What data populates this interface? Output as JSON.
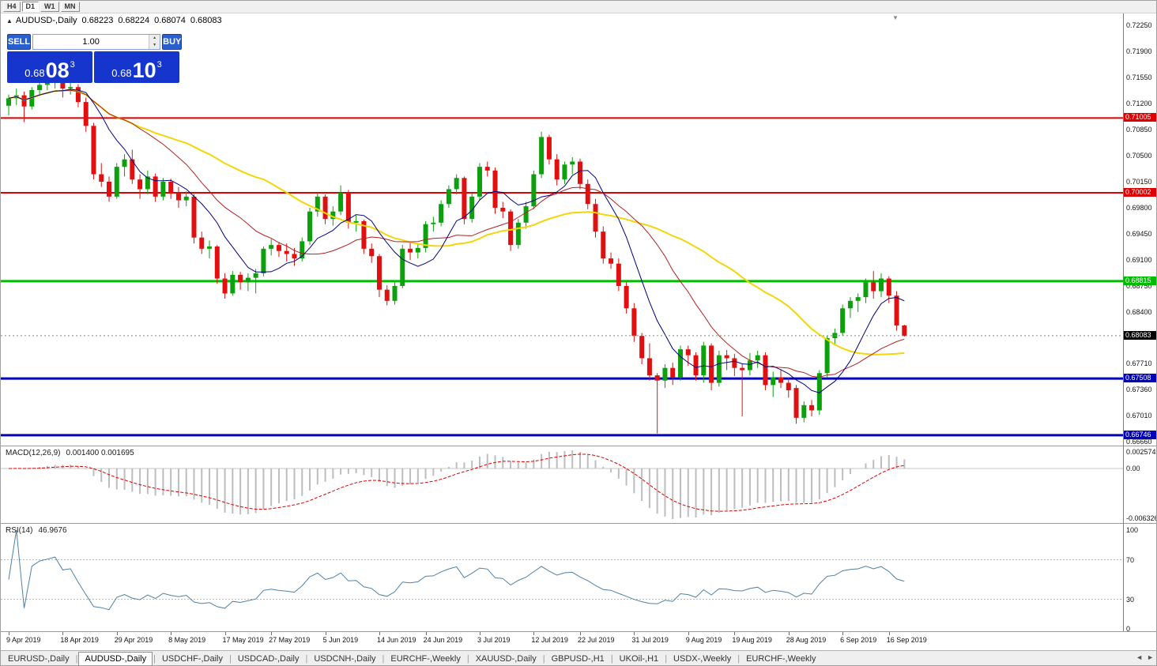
{
  "toolbar": {
    "timeframes": [
      {
        "label": "H4",
        "active": false
      },
      {
        "label": "D1",
        "active": true
      },
      {
        "label": "W1",
        "active": false
      },
      {
        "label": "MN",
        "active": false
      }
    ]
  },
  "symbol_line": {
    "icon": "▲",
    "title": "AUDUSD-,Daily",
    "open": "0.68223",
    "high": "0.68224",
    "low": "0.68074",
    "close": "0.68083"
  },
  "icons": {
    "shift_marker": "▼"
  },
  "trade_panel": {
    "sell_label": "SELL",
    "buy_label": "BUY",
    "volume": "1.00",
    "spinner_up": "▲",
    "spinner_down": "▼",
    "sell_price": {
      "prefix": "0.68",
      "big": "08",
      "sup": "3"
    },
    "buy_price": {
      "prefix": "0.68",
      "big": "10",
      "sup": "3"
    }
  },
  "chart_data": {
    "type": "candlestick",
    "symbol": "AUDUSD-",
    "timeframe": "Daily",
    "up_color": "#0ca00c",
    "down_color": "#e01010",
    "candles": [
      [
        0.7117,
        0.7132,
        0.7104,
        0.7127
      ],
      [
        0.7127,
        0.714,
        0.7118,
        0.7131
      ],
      [
        0.7131,
        0.7136,
        0.7095,
        0.7116
      ],
      [
        0.7116,
        0.7142,
        0.7112,
        0.7138
      ],
      [
        0.7138,
        0.715,
        0.713,
        0.7145
      ],
      [
        0.7145,
        0.7155,
        0.7138,
        0.7148
      ],
      [
        0.7148,
        0.7158,
        0.714,
        0.7152
      ],
      [
        0.7152,
        0.7155,
        0.7128,
        0.714
      ],
      [
        0.714,
        0.7148,
        0.7132,
        0.7142
      ],
      [
        0.7142,
        0.7146,
        0.7115,
        0.7122
      ],
      [
        0.7122,
        0.7128,
        0.7082,
        0.709
      ],
      [
        0.709,
        0.7094,
        0.7018,
        0.7025
      ],
      [
        0.7025,
        0.704,
        0.7008,
        0.7015
      ],
      [
        0.7015,
        0.7022,
        0.6988,
        0.6995
      ],
      [
        0.6995,
        0.704,
        0.6992,
        0.7035
      ],
      [
        0.7035,
        0.7052,
        0.7022,
        0.7045
      ],
      [
        0.7045,
        0.7058,
        0.7012,
        0.7018
      ],
      [
        0.7018,
        0.7025,
        0.6992,
        0.7005
      ],
      [
        0.7005,
        0.703,
        0.6998,
        0.7022
      ],
      [
        0.7022,
        0.7026,
        0.6988,
        0.6995
      ],
      [
        0.6995,
        0.702,
        0.699,
        0.7015
      ],
      [
        0.7015,
        0.7019,
        0.6992,
        0.7
      ],
      [
        0.7,
        0.7008,
        0.698,
        0.699
      ],
      [
        0.699,
        0.7002,
        0.6982,
        0.6995
      ],
      [
        0.6995,
        0.6998,
        0.6932,
        0.694
      ],
      [
        0.694,
        0.6948,
        0.6918,
        0.6925
      ],
      [
        0.6925,
        0.6936,
        0.6912,
        0.6928
      ],
      [
        0.6928,
        0.693,
        0.6878,
        0.6885
      ],
      [
        0.6885,
        0.6892,
        0.6858,
        0.6865
      ],
      [
        0.6865,
        0.6895,
        0.6862,
        0.689
      ],
      [
        0.689,
        0.6894,
        0.687,
        0.688
      ],
      [
        0.688,
        0.6892,
        0.6868,
        0.6886
      ],
      [
        0.6886,
        0.6898,
        0.6865,
        0.6892
      ],
      [
        0.6892,
        0.6928,
        0.6888,
        0.6925
      ],
      [
        0.6925,
        0.6938,
        0.6916,
        0.693
      ],
      [
        0.693,
        0.6934,
        0.6914,
        0.6922
      ],
      [
        0.6922,
        0.6932,
        0.6908,
        0.6918
      ],
      [
        0.6918,
        0.6926,
        0.6902,
        0.6912
      ],
      [
        0.6912,
        0.694,
        0.6908,
        0.6935
      ],
      [
        0.6935,
        0.698,
        0.693,
        0.6975
      ],
      [
        0.6975,
        0.7,
        0.6968,
        0.6995
      ],
      [
        0.6995,
        0.6998,
        0.6958,
        0.6965
      ],
      [
        0.6965,
        0.6982,
        0.6956,
        0.6975
      ],
      [
        0.6975,
        0.701,
        0.697,
        0.7
      ],
      [
        0.7,
        0.7004,
        0.6952,
        0.696
      ],
      [
        0.696,
        0.697,
        0.6948,
        0.6962
      ],
      [
        0.6962,
        0.6964,
        0.6918,
        0.6925
      ],
      [
        0.6925,
        0.6932,
        0.6906,
        0.6915
      ],
      [
        0.6915,
        0.6918,
        0.686,
        0.687
      ],
      [
        0.687,
        0.6876,
        0.6849,
        0.6855
      ],
      [
        0.6855,
        0.688,
        0.685,
        0.6875
      ],
      [
        0.6875,
        0.693,
        0.6872,
        0.6925
      ],
      [
        0.6925,
        0.6934,
        0.691,
        0.692
      ],
      [
        0.692,
        0.6932,
        0.6912,
        0.6926
      ],
      [
        0.6926,
        0.6962,
        0.692,
        0.6958
      ],
      [
        0.6958,
        0.6968,
        0.6948,
        0.696
      ],
      [
        0.696,
        0.699,
        0.6955,
        0.6985
      ],
      [
        0.6985,
        0.701,
        0.698,
        0.7005
      ],
      [
        0.7005,
        0.7025,
        0.6998,
        0.702
      ],
      [
        0.702,
        0.7022,
        0.6958,
        0.6965
      ],
      [
        0.6965,
        0.7,
        0.696,
        0.6995
      ],
      [
        0.6995,
        0.704,
        0.699,
        0.7035
      ],
      [
        0.7035,
        0.7042,
        0.7022,
        0.703
      ],
      [
        0.703,
        0.7034,
        0.6972,
        0.698
      ],
      [
        0.698,
        0.6988,
        0.6966,
        0.6975
      ],
      [
        0.6975,
        0.6978,
        0.6922,
        0.693
      ],
      [
        0.693,
        0.6965,
        0.6925,
        0.696
      ],
      [
        0.696,
        0.6988,
        0.6952,
        0.6982
      ],
      [
        0.6982,
        0.703,
        0.6978,
        0.7025
      ],
      [
        0.7025,
        0.7082,
        0.702,
        0.7075
      ],
      [
        0.7075,
        0.7078,
        0.7038,
        0.7045
      ],
      [
        0.7045,
        0.7052,
        0.701,
        0.7018
      ],
      [
        0.7018,
        0.7042,
        0.7012,
        0.7038
      ],
      [
        0.7038,
        0.7048,
        0.7025,
        0.7042
      ],
      [
        0.7042,
        0.7046,
        0.7005,
        0.7012
      ],
      [
        0.7012,
        0.7018,
        0.6978,
        0.6985
      ],
      [
        0.6985,
        0.6992,
        0.694,
        0.6948
      ],
      [
        0.6948,
        0.6955,
        0.6905,
        0.6912
      ],
      [
        0.6912,
        0.692,
        0.6898,
        0.6905
      ],
      [
        0.6905,
        0.6912,
        0.6868,
        0.6875
      ],
      [
        0.6875,
        0.688,
        0.6838,
        0.6845
      ],
      [
        0.6845,
        0.6852,
        0.68,
        0.6808
      ],
      [
        0.6808,
        0.6812,
        0.677,
        0.6778
      ],
      [
        0.6778,
        0.6798,
        0.6748,
        0.6755
      ],
      [
        0.6755,
        0.6758,
        0.6677,
        0.6748
      ],
      [
        0.6748,
        0.677,
        0.6738,
        0.6765
      ],
      [
        0.6765,
        0.6772,
        0.6742,
        0.6752
      ],
      [
        0.6752,
        0.6795,
        0.6748,
        0.679
      ],
      [
        0.679,
        0.6795,
        0.6768,
        0.6782
      ],
      [
        0.6782,
        0.6786,
        0.6748,
        0.6755
      ],
      [
        0.6755,
        0.68,
        0.6745,
        0.6795
      ],
      [
        0.6795,
        0.6798,
        0.6735,
        0.6745
      ],
      [
        0.6745,
        0.6788,
        0.674,
        0.6782
      ],
      [
        0.6782,
        0.6789,
        0.6762,
        0.6778
      ],
      [
        0.6778,
        0.6784,
        0.6754,
        0.6765
      ],
      [
        0.6765,
        0.677,
        0.67,
        0.6762
      ],
      [
        0.6762,
        0.6785,
        0.6755,
        0.6775
      ],
      [
        0.6775,
        0.6788,
        0.6765,
        0.6782
      ],
      [
        0.6782,
        0.6786,
        0.6735,
        0.6742
      ],
      [
        0.6742,
        0.676,
        0.6726,
        0.6752
      ],
      [
        0.6752,
        0.6762,
        0.6738,
        0.6745
      ],
      [
        0.6745,
        0.6752,
        0.6725,
        0.6735
      ],
      [
        0.6738,
        0.6742,
        0.669,
        0.6698
      ],
      [
        0.6698,
        0.672,
        0.6692,
        0.6715
      ],
      [
        0.6715,
        0.6722,
        0.67,
        0.6708
      ],
      [
        0.6708,
        0.6762,
        0.6702,
        0.6758
      ],
      [
        0.6758,
        0.6808,
        0.6752,
        0.6805
      ],
      [
        0.6805,
        0.6818,
        0.6795,
        0.6812
      ],
      [
        0.6812,
        0.685,
        0.6808,
        0.6845
      ],
      [
        0.6845,
        0.686,
        0.6832,
        0.6855
      ],
      [
        0.6855,
        0.6865,
        0.684,
        0.686
      ],
      [
        0.686,
        0.6885,
        0.6852,
        0.688
      ],
      [
        0.688,
        0.6895,
        0.6858,
        0.6868
      ],
      [
        0.6868,
        0.6892,
        0.686,
        0.6885
      ],
      [
        0.6885,
        0.6888,
        0.6852,
        0.6862
      ],
      [
        0.6862,
        0.6868,
        0.6815,
        0.6822
      ],
      [
        0.6822,
        0.6823,
        0.6807,
        0.6808
      ]
    ],
    "x_labels": [
      {
        "text": "9 Apr 2019",
        "i": 0
      },
      {
        "text": "18 Apr 2019",
        "i": 7
      },
      {
        "text": "29 Apr 2019",
        "i": 14
      },
      {
        "text": "8 May 2019",
        "i": 21
      },
      {
        "text": "17 May 2019",
        "i": 28
      },
      {
        "text": "27 May 2019",
        "i": 34
      },
      {
        "text": "5 Jun 2019",
        "i": 41
      },
      {
        "text": "14 Jun 2019",
        "i": 48
      },
      {
        "text": "24 Jun 2019",
        "i": 54
      },
      {
        "text": "3 Jul 2019",
        "i": 61
      },
      {
        "text": "12 Jul 2019",
        "i": 68
      },
      {
        "text": "22 Jul 2019",
        "i": 74
      },
      {
        "text": "31 Jul 2019",
        "i": 81
      },
      {
        "text": "9 Aug 2019",
        "i": 88
      },
      {
        "text": "19 Aug 2019",
        "i": 94
      },
      {
        "text": "28 Aug 2019",
        "i": 101
      },
      {
        "text": "6 Sep 2019",
        "i": 108
      },
      {
        "text": "16 Sep 2019",
        "i": 114
      }
    ],
    "y_ticks": [
      {
        "text": "0.72250",
        "p": 0.7225
      },
      {
        "text": "0.71900",
        "p": 0.719
      },
      {
        "text": "0.71550",
        "p": 0.7155
      },
      {
        "text": "0.71200",
        "p": 0.712
      },
      {
        "text": "0.70850",
        "p": 0.7085
      },
      {
        "text": "0.70500",
        "p": 0.705
      },
      {
        "text": "0.70150",
        "p": 0.7015
      },
      {
        "text": "0.69800",
        "p": 0.698
      },
      {
        "text": "0.69450",
        "p": 0.6945
      },
      {
        "text": "0.69100",
        "p": 0.691
      },
      {
        "text": "0.68750",
        "p": 0.6875
      },
      {
        "text": "0.68400",
        "p": 0.684
      },
      {
        "text": "0.67710",
        "p": 0.6771
      },
      {
        "text": "0.67360",
        "p": 0.6736
      },
      {
        "text": "0.67010",
        "p": 0.6701
      },
      {
        "text": "0.66660",
        "p": 0.6666
      }
    ],
    "hlines": [
      {
        "label": "0.71005",
        "price": 0.71005,
        "color": "#dd0000",
        "width": 2
      },
      {
        "label": "0.70002",
        "price": 0.70002,
        "color": "#dd0000",
        "width": 2
      },
      {
        "label": "0.68815",
        "price": 0.68815,
        "color": "#00bb00",
        "width": 3
      },
      {
        "label": "0.67508",
        "price": 0.67508,
        "color": "#0000bb",
        "width": 3
      },
      {
        "label": "0.66746",
        "price": 0.66746,
        "color": "#0000bb",
        "width": 3
      }
    ],
    "current_price": {
      "label": "0.68083",
      "price": 0.68083,
      "badge_color": "#000000"
    },
    "moving_averages": [
      {
        "period": 34,
        "color": "#f2d60a",
        "width": 2
      },
      {
        "period": 17,
        "color": "#b22222",
        "width": 1
      },
      {
        "period": 8,
        "color": "#000080",
        "width": 1
      }
    ],
    "macd": {
      "name": "MACD(12,26,9)",
      "values": "0.001400 0.001695",
      "fast": 12,
      "slow": 26,
      "signal_period": 9,
      "hist_color": "#bdbdbd",
      "signal_color": "#dd0000",
      "axis": [
        {
          "text": "0.002574",
          "pos": "top"
        },
        {
          "text": "0.00",
          "pos": "zero"
        },
        {
          "text": "-0.006326",
          "pos": "bottom"
        }
      ]
    },
    "rsi": {
      "name": "RSI(14)",
      "value": "46.9676",
      "period": 14,
      "color": "#4f81a4",
      "levels": [
        70,
        30
      ],
      "axis": [
        {
          "text": "100",
          "v": 100
        },
        {
          "text": "70",
          "v": 70
        },
        {
          "text": "30",
          "v": 30
        },
        {
          "text": "0",
          "v": 0
        }
      ]
    }
  },
  "tabs": {
    "nav_left": "◄",
    "nav_right": "►",
    "items": [
      {
        "label": "EURUSD-,Daily",
        "active": false
      },
      {
        "label": "AUDUSD-,Daily",
        "active": true
      },
      {
        "label": "USDCHF-,Daily",
        "active": false
      },
      {
        "label": "USDCAD-,Daily",
        "active": false
      },
      {
        "label": "USDCNH-,Daily",
        "active": false
      },
      {
        "label": "EURCHF-,Weekly",
        "active": false
      },
      {
        "label": "XAUUSD-,Daily",
        "active": false
      },
      {
        "label": "GBPUSD-,H1",
        "active": false
      },
      {
        "label": "UKOil-,H1",
        "active": false
      },
      {
        "label": "USDX-,Weekly",
        "active": false
      },
      {
        "label": "EURCHF-,Weekly",
        "active": false
      }
    ]
  }
}
